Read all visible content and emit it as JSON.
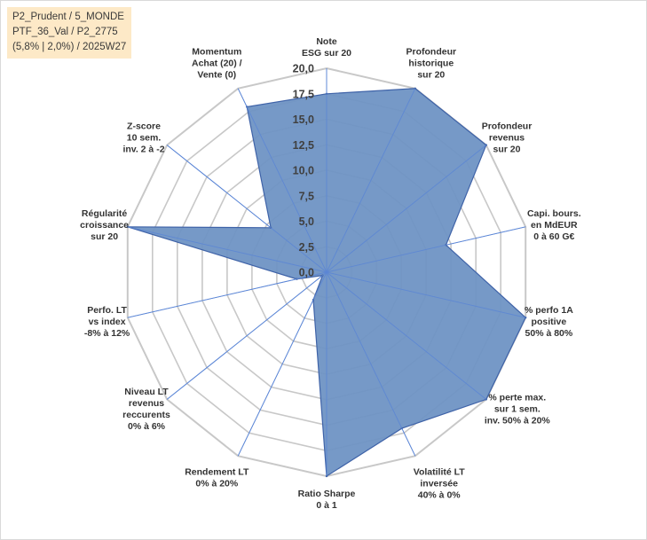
{
  "info_box": {
    "line1": "P2_Prudent / 5_MONDE",
    "line2": "PTF_36_Val / P2_2775",
    "line3": "(5,8% | 2,0%) / 2025W27"
  },
  "colors": {
    "fill": "#6f93c4",
    "stroke": "#3f63a8",
    "grid": "#c8c8c8",
    "spoke": "#5b86d6"
  },
  "chart_data": {
    "type": "radar",
    "rlim": [
      0,
      20
    ],
    "grid": true,
    "tick_labels": [
      "0,0",
      "2,5",
      "5,0",
      "7,5",
      "10,0",
      "12,5",
      "15,0",
      "17,5",
      "20,0"
    ],
    "categories": [
      [
        "Note",
        "ESG sur 20"
      ],
      [
        "Profondeur",
        "historique",
        "sur 20"
      ],
      [
        "Profondeur",
        "revenus",
        "sur 20"
      ],
      [
        "Capi. bours.",
        "en MdEUR",
        "0 à 60 G€"
      ],
      [
        "% perfo 1A",
        "positive",
        "50% à 80%"
      ],
      [
        "% perte max.",
        "sur 1 sem.",
        "inv. 50% à 20%"
      ],
      [
        "Volatilité LT",
        "inversée",
        "40% à 0%"
      ],
      [
        "Ratio Sharpe",
        "0 à 1"
      ],
      [
        "Rendement LT",
        "0% à 20%"
      ],
      [
        "Niveau LT",
        "revenus",
        "reccurents",
        "0% à 6%"
      ],
      [
        "Perfo. LT",
        "vs index",
        "-8% à 12%"
      ],
      [
        "Régularité",
        "croissance",
        "sur 20"
      ],
      [
        "Z-score",
        "10 sem.",
        "inv. 2 à -2"
      ],
      [
        "Momentum",
        "Achat (20) /",
        "Vente (0)"
      ]
    ],
    "series": [
      {
        "values": [
          17.5,
          20,
          20,
          12,
          20,
          20,
          17,
          20,
          3,
          0.5,
          3,
          20,
          7,
          18
        ]
      }
    ]
  }
}
